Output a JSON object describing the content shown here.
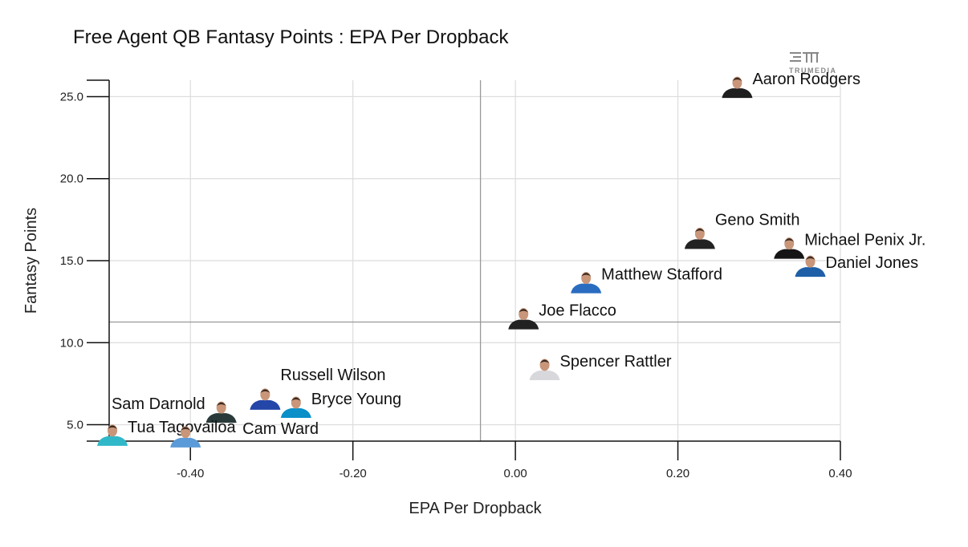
{
  "chart_data": {
    "type": "scatter",
    "title": "Free Agent QB Fantasy Points : EPA Per Dropback",
    "xlabel": "EPA Per Dropback",
    "ylabel": "Fantasy Points",
    "xlim": [
      -0.5,
      0.4
    ],
    "ylim": [
      4,
      26
    ],
    "xticks": [
      -0.4,
      -0.2,
      0.0,
      0.2,
      0.4
    ],
    "xtick_labels": [
      "-0.40",
      "-0.20",
      "0.00",
      "0.20",
      "0.40"
    ],
    "yticks": [
      5,
      10,
      15,
      20,
      25
    ],
    "ytick_labels": [
      "5.0",
      "10.0",
      "15.0",
      "20.0",
      "25.0"
    ],
    "grid": true,
    "reference_lines": {
      "x": -0.043,
      "y": 11.26
    },
    "watermark": "TRUMEDIA",
    "points": [
      {
        "name": "Aaron Rodgers",
        "x": 0.273,
        "y": 25.6,
        "color": "#1f1f1f"
      },
      {
        "name": "Geno Smith",
        "x": 0.227,
        "y": 16.4,
        "color": "#222222"
      },
      {
        "name": "Michael Penix Jr.",
        "x": 0.337,
        "y": 15.8,
        "color": "#151515"
      },
      {
        "name": "Daniel Jones",
        "x": 0.363,
        "y": 14.7,
        "color": "#1e5fa8"
      },
      {
        "name": "Matthew Stafford",
        "x": 0.087,
        "y": 13.7,
        "color": "#2a6cc0"
      },
      {
        "name": "Joe Flacco",
        "x": 0.01,
        "y": 11.5,
        "color": "#222222"
      },
      {
        "name": "Spencer Rattler",
        "x": 0.036,
        "y": 8.4,
        "color": "#d8d8dc"
      },
      {
        "name": "Russell Wilson",
        "x": -0.308,
        "y": 6.6,
        "color": "#2346a8"
      },
      {
        "name": "Bryce Young",
        "x": -0.27,
        "y": 6.1,
        "color": "#0a8fc8"
      },
      {
        "name": "Sam Darnold",
        "x": -0.362,
        "y": 5.8,
        "color": "#2a3a3a"
      },
      {
        "name": "Tua Tagovailoa",
        "x": -0.496,
        "y": 4.4,
        "color": "#30b8c8"
      },
      {
        "name": "Cam Ward",
        "x": -0.406,
        "y": 4.3,
        "color": "#5a9ad8"
      }
    ]
  }
}
